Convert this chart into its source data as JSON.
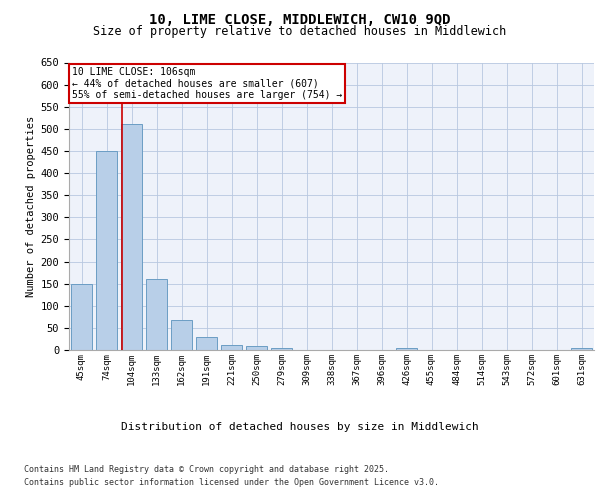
{
  "title_line1": "10, LIME CLOSE, MIDDLEWICH, CW10 9QD",
  "title_line2": "Size of property relative to detached houses in Middlewich",
  "xlabel": "Distribution of detached houses by size in Middlewich",
  "ylabel": "Number of detached properties",
  "categories": [
    "45sqm",
    "74sqm",
    "104sqm",
    "133sqm",
    "162sqm",
    "191sqm",
    "221sqm",
    "250sqm",
    "279sqm",
    "309sqm",
    "338sqm",
    "367sqm",
    "396sqm",
    "426sqm",
    "455sqm",
    "484sqm",
    "514sqm",
    "543sqm",
    "572sqm",
    "601sqm",
    "631sqm"
  ],
  "values": [
    150,
    450,
    510,
    160,
    67,
    30,
    12,
    8,
    5,
    0,
    0,
    0,
    0,
    5,
    0,
    0,
    0,
    0,
    0,
    0,
    5
  ],
  "bar_color": "#b8cfe8",
  "bar_edge_color": "#6b9dc4",
  "vline_position": 1.6,
  "vline_color": "#cc0000",
  "ylim": [
    0,
    650
  ],
  "yticks": [
    0,
    50,
    100,
    150,
    200,
    250,
    300,
    350,
    400,
    450,
    500,
    550,
    600,
    650
  ],
  "annotation_title": "10 LIME CLOSE: 106sqm",
  "annotation_line1": "← 44% of detached houses are smaller (607)",
  "annotation_line2": "55% of semi-detached houses are larger (754) →",
  "annotation_box_color": "#cc0000",
  "footnote_line1": "Contains HM Land Registry data © Crown copyright and database right 2025.",
  "footnote_line2": "Contains public sector information licensed under the Open Government Licence v3.0.",
  "plot_bg_color": "#eef2fa"
}
